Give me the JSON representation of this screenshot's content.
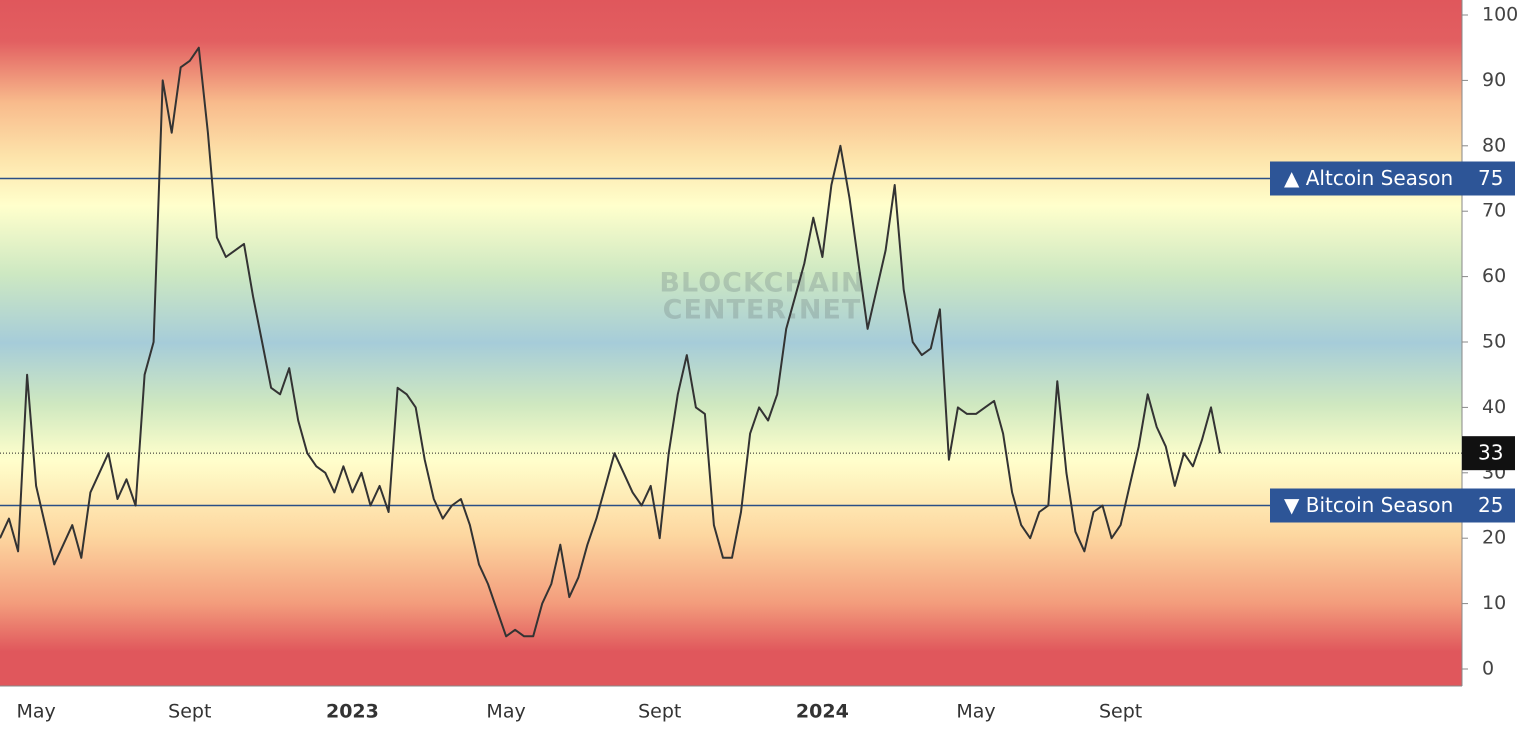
{
  "chart_data": {
    "type": "line",
    "watermark": [
      "BLOCKCHAIN",
      "CENTER.NET"
    ],
    "categories": [
      null,
      null,
      null,
      null,
      "May",
      null,
      null,
      null,
      null,
      null,
      null,
      null,
      null,
      null,
      null,
      null,
      null,
      null,
      null,
      null,
      null,
      "Sept",
      null,
      null,
      null,
      null,
      null,
      null,
      null,
      null,
      null,
      null,
      null,
      null,
      null,
      null,
      null,
      null,
      null,
      "2023",
      null,
      null,
      null,
      null,
      null,
      null,
      null,
      null,
      null,
      null,
      null,
      null,
      null,
      null,
      null,
      null,
      "May",
      null,
      null,
      null,
      null,
      null,
      null,
      null,
      null,
      null,
      null,
      null,
      null,
      null,
      null,
      null,
      null,
      "Sept",
      null,
      null,
      null,
      null,
      null,
      null,
      null,
      null,
      null,
      null,
      null,
      null,
      null,
      null,
      null,
      null,
      null,
      "2024",
      null,
      null,
      null,
      null,
      null,
      null,
      null,
      null,
      null,
      null,
      null,
      null,
      null,
      null,
      null,
      null,
      "May",
      null,
      null,
      null,
      null,
      null,
      null,
      null,
      null,
      null,
      null,
      null,
      null,
      null,
      null,
      null,
      "Sept",
      null,
      null,
      null,
      null,
      null,
      null,
      null,
      null,
      null,
      null,
      null
    ],
    "values": [
      20,
      23,
      18,
      45,
      28,
      22,
      16,
      19,
      22,
      17,
      27,
      30,
      33,
      26,
      29,
      25,
      45,
      50,
      90,
      82,
      92,
      93,
      95,
      82,
      66,
      63,
      64,
      65,
      57,
      50,
      43,
      42,
      46,
      38,
      33,
      31,
      30,
      27,
      31,
      27,
      30,
      25,
      28,
      24,
      43,
      42,
      40,
      32,
      26,
      23,
      25,
      26,
      22,
      16,
      13,
      9,
      5,
      6,
      5,
      5,
      10,
      13,
      19,
      11,
      14,
      19,
      23,
      28,
      33,
      30,
      27,
      25,
      28,
      20,
      33,
      42,
      48,
      40,
      39,
      22,
      17,
      17,
      24,
      36,
      40,
      38,
      42,
      52,
      57,
      62,
      69,
      63,
      74,
      80,
      72,
      62,
      52,
      58,
      64,
      74,
      58,
      50,
      48,
      49,
      55,
      32,
      40,
      39,
      39,
      40,
      41,
      36,
      27,
      22,
      20,
      24,
      25,
      44,
      30,
      21,
      18,
      24,
      25,
      20,
      22,
      28,
      34,
      42,
      37,
      34,
      28,
      33,
      31,
      35,
      40,
      33
    ],
    "color": "#333333",
    "ylim": [
      0,
      100
    ],
    "yticks": [
      0,
      10,
      20,
      30,
      40,
      50,
      60,
      70,
      80,
      90,
      100
    ],
    "thresholds": [
      {
        "label": "▲ Altcoin Season",
        "value": 75
      },
      {
        "label": "▼ Bitcoin Season",
        "value": 25
      }
    ]
  }
}
